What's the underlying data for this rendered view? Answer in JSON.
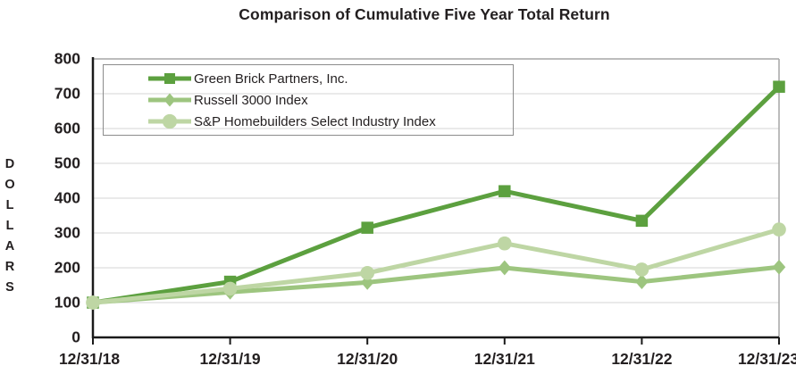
{
  "chart_data": {
    "type": "line",
    "title": "Comparison of Cumulative Five Year Total Return",
    "xlabel": "",
    "ylabel": "DOLLARS",
    "categories": [
      "12/31/18",
      "12/31/19",
      "12/31/20",
      "12/31/21",
      "12/31/22",
      "12/31/23"
    ],
    "ylim": [
      0,
      800
    ],
    "yticks": [
      0,
      100,
      200,
      300,
      400,
      500,
      600,
      700,
      800
    ],
    "grid": true,
    "legend_position": "top-left-inside",
    "series": [
      {
        "name": "Green Brick Partners, Inc.",
        "marker": "square",
        "color": "#5ca03f",
        "values": [
          100,
          160,
          315,
          420,
          335,
          720
        ]
      },
      {
        "name": "Russell 3000 Index",
        "marker": "diamond",
        "color": "#9dc57f",
        "values": [
          100,
          130,
          158,
          200,
          160,
          202
        ]
      },
      {
        "name": "S&P Homebuilders Select Industry Index",
        "marker": "circle",
        "color": "#bed6a4",
        "values": [
          100,
          140,
          185,
          270,
          195,
          310
        ]
      }
    ],
    "colors": {
      "axis": "#1a1a1a",
      "plot_border": "#a6a6a6",
      "gridline": "#d6d6d6",
      "text": "#231f20"
    }
  }
}
